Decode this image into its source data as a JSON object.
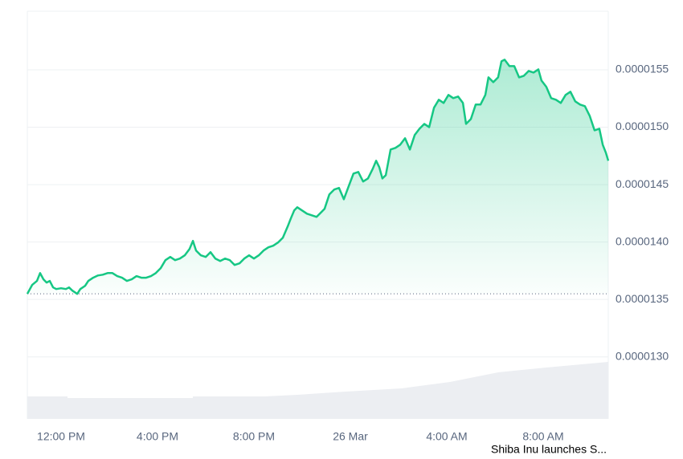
{
  "chart_data": {
    "type": "line",
    "annotation": "Shiba Inu launches S...",
    "x": [
      10.6,
      10.8,
      11,
      11.13,
      11.27,
      11.4,
      11.53,
      11.67,
      11.8,
      12,
      12.2,
      12.33,
      12.47,
      12.67,
      12.8,
      13,
      13.13,
      13.33,
      13.53,
      13.73,
      13.93,
      14.13,
      14.33,
      14.53,
      14.73,
      14.93,
      15.13,
      15.33,
      15.53,
      15.73,
      15.93,
      16.13,
      16.33,
      16.53,
      16.73,
      16.93,
      17.13,
      17.33,
      17.47,
      17.6,
      17.8,
      18,
      18.2,
      18.4,
      18.6,
      18.8,
      19,
      19.2,
      19.4,
      19.6,
      19.8,
      20,
      20.2,
      20.4,
      20.6,
      20.8,
      21,
      21.2,
      21.4,
      21.53,
      21.67,
      21.8,
      22,
      22.2,
      22.4,
      22.6,
      22.8,
      22.93,
      23.13,
      23.33,
      23.53,
      23.73,
      23.93,
      24.13,
      24.33,
      24.53,
      24.73,
      24.93,
      25.07,
      25.2,
      25.33,
      25.47,
      25.67,
      25.87,
      26.07,
      26.27,
      26.47,
      26.67,
      26.87,
      27.07,
      27.27,
      27.47,
      27.67,
      27.87,
      28.07,
      28.27,
      28.47,
      28.67,
      28.8,
      29,
      29.2,
      29.4,
      29.6,
      29.73,
      29.93,
      30.13,
      30.27,
      30.4,
      30.6,
      30.8,
      31,
      31.2,
      31.4,
      31.6,
      31.8,
      31.93,
      32.13,
      32.33,
      32.53,
      32.73,
      32.93,
      33.13,
      33.33,
      33.53,
      33.73,
      33.93,
      34.13,
      34.33,
      34.47,
      34.6,
      34.7
    ],
    "series": [
      {
        "color": "#16c784",
        "values": [
          1.3549e-05,
          1.3626e-05,
          1.3661e-05,
          1.373e-05,
          1.3675e-05,
          1.3647e-05,
          1.3661e-05,
          1.3605e-05,
          1.3591e-05,
          1.3598e-05,
          1.3591e-05,
          1.3605e-05,
          1.3577e-05,
          1.3549e-05,
          1.3591e-05,
          1.3619e-05,
          1.3661e-05,
          1.3689e-05,
          1.3709e-05,
          1.3716e-05,
          1.373e-05,
          1.373e-05,
          1.3703e-05,
          1.3689e-05,
          1.3661e-05,
          1.3675e-05,
          1.3703e-05,
          1.3689e-05,
          1.3689e-05,
          1.3703e-05,
          1.373e-05,
          1.3772e-05,
          1.3842e-05,
          1.387e-05,
          1.3842e-05,
          1.3856e-05,
          1.3884e-05,
          1.394e-05,
          1.401e-05,
          1.3926e-05,
          1.3884e-05,
          1.387e-05,
          1.3912e-05,
          1.3856e-05,
          1.3835e-05,
          1.3856e-05,
          1.3842e-05,
          1.38e-05,
          1.3814e-05,
          1.3856e-05,
          1.3884e-05,
          1.3856e-05,
          1.3884e-05,
          1.3926e-05,
          1.3954e-05,
          1.3968e-05,
          1.3996e-05,
          1.4038e-05,
          1.4135e-05,
          1.4205e-05,
          1.4275e-05,
          1.4303e-05,
          1.4275e-05,
          1.4247e-05,
          1.4233e-05,
          1.4219e-05,
          1.4261e-05,
          1.4289e-05,
          1.4415e-05,
          1.4457e-05,
          1.4471e-05,
          1.4373e-05,
          1.4485e-05,
          1.4596e-05,
          1.461e-05,
          1.4527e-05,
          1.4554e-05,
          1.4638e-05,
          1.4708e-05,
          1.4652e-05,
          1.4554e-05,
          1.4582e-05,
          1.4806e-05,
          1.482e-05,
          1.4848e-05,
          1.4904e-05,
          1.4806e-05,
          1.4932e-05,
          1.4987e-05,
          1.5029e-05,
          1.5001e-05,
          1.5169e-05,
          1.5239e-05,
          1.5211e-05,
          1.5281e-05,
          1.5253e-05,
          1.5267e-05,
          1.5211e-05,
          1.5029e-05,
          1.5071e-05,
          1.5197e-05,
          1.5197e-05,
          1.5281e-05,
          1.5434e-05,
          1.5392e-05,
          1.5434e-05,
          1.5574e-05,
          1.5588e-05,
          1.5532e-05,
          1.5532e-05,
          1.5434e-05,
          1.5448e-05,
          1.549e-05,
          1.5476e-05,
          1.5504e-05,
          1.5406e-05,
          1.5351e-05,
          1.5253e-05,
          1.5239e-05,
          1.5211e-05,
          1.5281e-05,
          1.5309e-05,
          1.5225e-05,
          1.5197e-05,
          1.5183e-05,
          1.5099e-05,
          1.4973e-05,
          1.4987e-05,
          1.4848e-05,
          1.4778e-05,
          1.4708e-05
        ]
      }
    ],
    "xlim": [
      10.6,
      34.7
    ],
    "xticks": [
      {
        "value": 12,
        "label": "12:00 PM"
      },
      {
        "value": 16,
        "label": "4:00 PM"
      },
      {
        "value": 20,
        "label": "8:00 PM"
      },
      {
        "value": 24,
        "label": "26 Mar"
      },
      {
        "value": 28,
        "label": "4:00 AM"
      },
      {
        "value": 32,
        "label": "8:00 AM"
      }
    ],
    "ylim": [
      1.246e-05,
      1.601e-05
    ],
    "yticks": [
      {
        "value": 1.3e-05,
        "label": "0.0000130"
      },
      {
        "value": 1.35e-05,
        "label": "0.0000135"
      },
      {
        "value": 1.4e-05,
        "label": "0.0000140"
      },
      {
        "value": 1.45e-05,
        "label": "0.0000145"
      },
      {
        "value": 1.5e-05,
        "label": "0.0000150"
      },
      {
        "value": 1.55e-05,
        "label": "0.0000155"
      }
    ],
    "grid": true
  }
}
